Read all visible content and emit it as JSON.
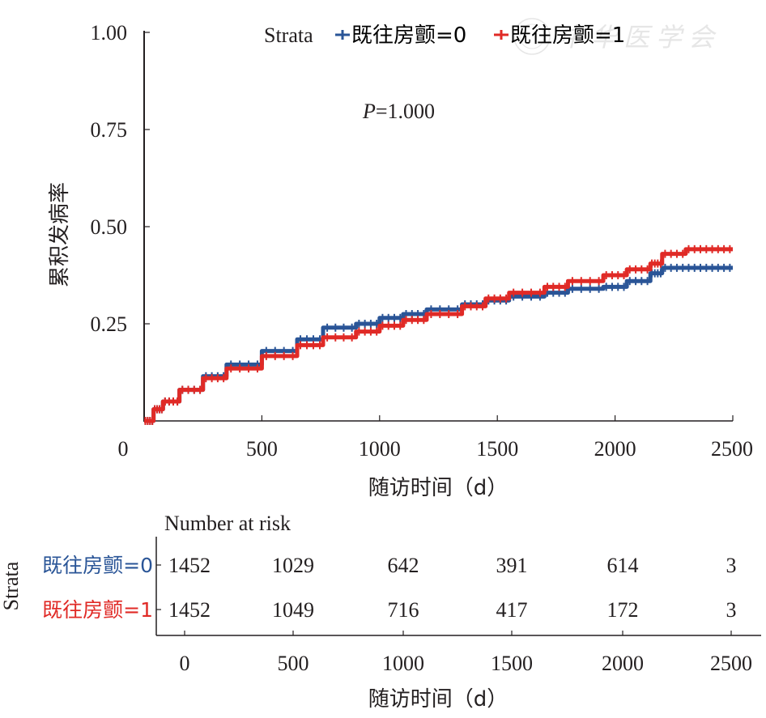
{
  "chart_data": {
    "type": "line",
    "subtype": "cumulative-incidence-step",
    "ylabel": "累积发病率",
    "xlabel": "随访时间（d）",
    "xlim": [
      0,
      2500
    ],
    "ylim": [
      0,
      1
    ],
    "x_ticks": [
      "0",
      "500",
      "1000",
      "1500",
      "2000",
      "2500"
    ],
    "y_ticks": [
      "1.00",
      "0.75",
      "0.50",
      "0.25"
    ],
    "y_tick_values": [
      1.0,
      0.75,
      0.5,
      0.25
    ],
    "x_tick_values": [
      0,
      500,
      1000,
      1500,
      2000,
      2500
    ],
    "grid": false,
    "annotation": {
      "italic": "P",
      "rest": "=1.000"
    },
    "legend": {
      "title": "Strata",
      "position": "top",
      "entries": [
        "既往房颤=0",
        "既往房颤=1"
      ]
    },
    "series": [
      {
        "name": "既往房颤=0",
        "color": "#2a5597",
        "x": [
          0,
          40,
          80,
          150,
          250,
          350,
          500,
          650,
          760,
          900,
          1000,
          1100,
          1200,
          1350,
          1450,
          1550,
          1700,
          1800,
          1950,
          2050,
          2150,
          2200,
          2300,
          2400,
          2500
        ],
        "y": [
          0,
          0.03,
          0.05,
          0.08,
          0.115,
          0.145,
          0.18,
          0.21,
          0.24,
          0.25,
          0.265,
          0.275,
          0.287,
          0.3,
          0.31,
          0.32,
          0.33,
          0.34,
          0.345,
          0.36,
          0.38,
          0.394,
          0.394,
          0.394,
          0.394
        ]
      },
      {
        "name": "既往房颤=1",
        "color": "#e02a26",
        "x": [
          0,
          40,
          80,
          150,
          250,
          350,
          500,
          650,
          760,
          900,
          1000,
          1100,
          1200,
          1350,
          1450,
          1550,
          1700,
          1800,
          1950,
          2050,
          2150,
          2200,
          2300,
          2400,
          2500
        ],
        "y": [
          0,
          0.03,
          0.05,
          0.08,
          0.11,
          0.135,
          0.167,
          0.195,
          0.215,
          0.23,
          0.245,
          0.26,
          0.275,
          0.295,
          0.315,
          0.33,
          0.345,
          0.36,
          0.375,
          0.39,
          0.405,
          0.43,
          0.442,
          0.442,
          0.442
        ]
      }
    ]
  },
  "risk_table": {
    "title": "Number at risk",
    "strata_label": "Strata",
    "xlabel": "随访时间（d）",
    "x_ticks": [
      "0",
      "500",
      "1000",
      "1500",
      "2000",
      "2500"
    ],
    "rows": [
      {
        "label": "既往房颤=0",
        "color": "#2a5597",
        "values": [
          "1452",
          "1029",
          "642",
          "391",
          "614",
          "3"
        ]
      },
      {
        "label": "既往房颤=1",
        "color": "#e02a26",
        "values": [
          "1452",
          "1049",
          "716",
          "417",
          "172",
          "3"
        ]
      }
    ]
  },
  "watermark": {
    "text": "中华医学会"
  }
}
